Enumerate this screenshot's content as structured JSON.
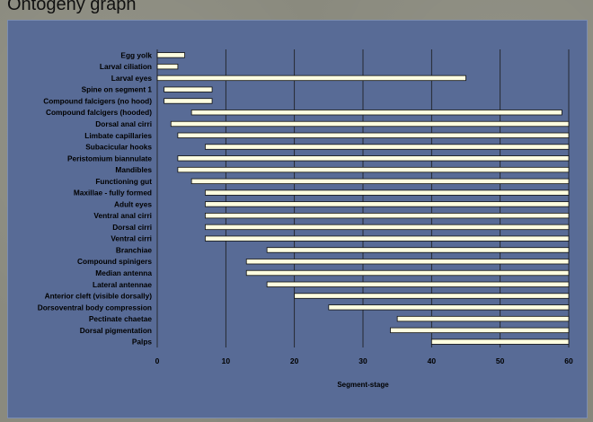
{
  "page": {
    "top_text": "Ontogeny graph",
    "background_color": "#8a8a7e",
    "panel_color": "#586b96",
    "bar_fill": "#fdfde0",
    "bar_stroke": "#111111"
  },
  "chart_data": {
    "type": "bar",
    "orientation": "horizontal",
    "title": "",
    "xlabel": "Segment-stage",
    "ylabel": "",
    "xlim": [
      0,
      60
    ],
    "xticks": [
      0,
      10,
      20,
      30,
      40,
      50,
      60
    ],
    "grid": "vertical",
    "legend": "none",
    "categories": [
      "Egg yolk",
      "Larval ciliation",
      "Larval eyes",
      "Spine on segment 1",
      "Compound falcigers (no hood)",
      "Compound falcigers (hooded)",
      "Dorsal anal cirri",
      "Limbate capillaries",
      "Subacicular hooks",
      "Peristomium biannulate",
      "Mandibles",
      "Functioning gut",
      "Maxillae - fully formed",
      "Adult eyes",
      "Ventral anal cirri",
      "Dorsal cirri",
      "Ventral cirri",
      "Branchiae",
      "Compound spinigers",
      "Median antenna",
      "Lateral antennae",
      "Anterior cleft (visible dorsally)",
      "Dorsoventral body compression",
      "Pectinate chaetae",
      "Dorsal pigmentation",
      "Palps"
    ],
    "ranges": [
      [
        0,
        4
      ],
      [
        0,
        3
      ],
      [
        0,
        45
      ],
      [
        1,
        8
      ],
      [
        1,
        8
      ],
      [
        5,
        59
      ],
      [
        2,
        60
      ],
      [
        3,
        60
      ],
      [
        7,
        60
      ],
      [
        3,
        60
      ],
      [
        3,
        60
      ],
      [
        5,
        60
      ],
      [
        7,
        60
      ],
      [
        7,
        60
      ],
      [
        7,
        60
      ],
      [
        7,
        60
      ],
      [
        7,
        60
      ],
      [
        16,
        60
      ],
      [
        13,
        60
      ],
      [
        13,
        60
      ],
      [
        16,
        60
      ],
      [
        20,
        60
      ],
      [
        25,
        60
      ],
      [
        35,
        60
      ],
      [
        34,
        60
      ],
      [
        40,
        60
      ]
    ]
  }
}
